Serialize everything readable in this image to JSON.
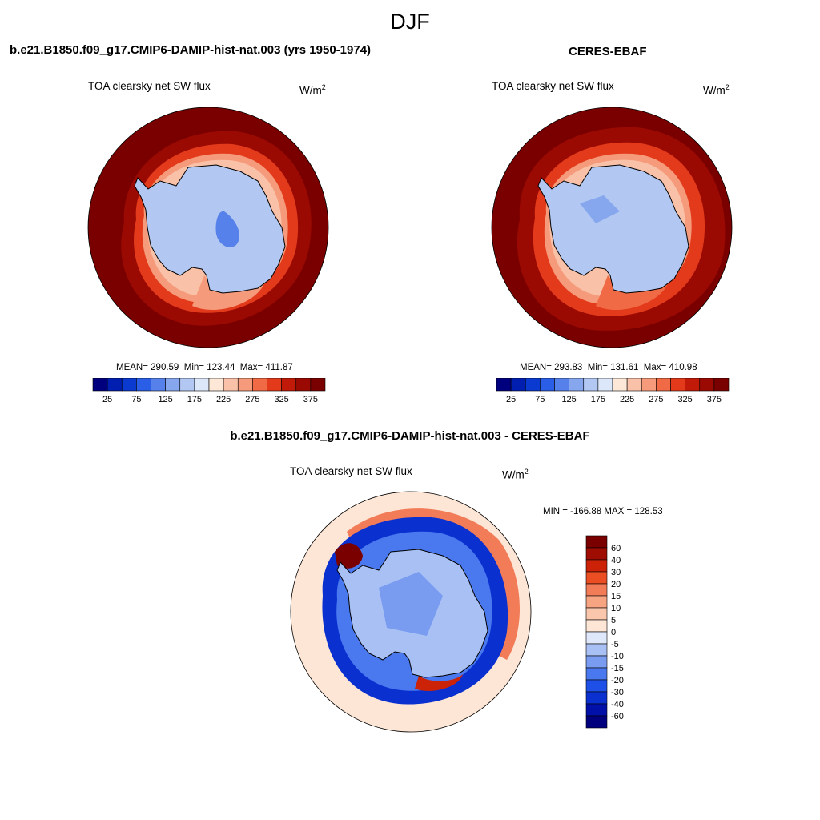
{
  "figure": {
    "title": "DJF"
  },
  "chart_data": [
    {
      "type": "heatmap",
      "projection": "south-polar-stereographic",
      "title": "b.e21.B1850.f09_g17.CMIP6-DAMIP-hist-nat.003 (yrs 1950-1974)",
      "variable": "TOA clearsky net SW flux",
      "units": {
        "base": "W/m",
        "exp": "2"
      },
      "stats": {
        "mean_label": "MEAN=",
        "mean": "290.59",
        "min_label": "Min=",
        "min": "123.44",
        "max_label": "Max=",
        "max": "411.87"
      },
      "colorbar": {
        "orientation": "horizontal",
        "levels": [
          25,
          50,
          75,
          100,
          125,
          150,
          175,
          200,
          225,
          250,
          275,
          300,
          325,
          350,
          375
        ],
        "tick_labels": [
          "25",
          "75",
          "125",
          "175",
          "225",
          "275",
          "325",
          "375"
        ],
        "colors": [
          "#00007f",
          "#001fb0",
          "#0a3ad0",
          "#2a5ee6",
          "#5781ea",
          "#86a7ee",
          "#b2c8f2",
          "#dce7fa",
          "#fde8d8",
          "#f9c1a8",
          "#f59a7a",
          "#f06a45",
          "#e23a1a",
          "#c21a08",
          "#9a0a02",
          "#7a0000"
        ]
      },
      "field": {
        "ocean_outer": 390,
        "ocean_ice_edge": 230,
        "antarctica_plateau": 150,
        "ross_sea": 270
      }
    },
    {
      "type": "heatmap",
      "projection": "south-polar-stereographic",
      "title": "CERES-EBAF",
      "variable": "TOA clearsky net SW flux",
      "units": {
        "base": "W/m",
        "exp": "2"
      },
      "stats": {
        "mean_label": "MEAN=",
        "mean": "293.83",
        "min_label": "Min=",
        "min": "131.61",
        "max_label": "Max=",
        "max": "410.98"
      },
      "colorbar": {
        "orientation": "horizontal",
        "levels": [
          25,
          50,
          75,
          100,
          125,
          150,
          175,
          200,
          225,
          250,
          275,
          300,
          325,
          350,
          375
        ],
        "tick_labels": [
          "25",
          "75",
          "125",
          "175",
          "225",
          "275",
          "325",
          "375"
        ],
        "colors": [
          "#00007f",
          "#001fb0",
          "#0a3ad0",
          "#2a5ee6",
          "#5781ea",
          "#86a7ee",
          "#b2c8f2",
          "#dce7fa",
          "#fde8d8",
          "#f9c1a8",
          "#f59a7a",
          "#f06a45",
          "#e23a1a",
          "#c21a08",
          "#9a0a02",
          "#7a0000"
        ]
      },
      "field": {
        "ocean_outer": 390,
        "ocean_ice_edge": 240,
        "antarctica_plateau": 155,
        "ross_sea": 290
      }
    },
    {
      "type": "heatmap",
      "projection": "south-polar-stereographic",
      "title": "b.e21.B1850.f09_g17.CMIP6-DAMIP-hist-nat.003 - CERES-EBAF",
      "variable": "TOA clearsky net SW flux",
      "units": {
        "base": "W/m",
        "exp": "2"
      },
      "stats": {
        "text": "MIN = -166.88 MAX = 128.53"
      },
      "colorbar": {
        "orientation": "vertical",
        "levels": [
          -60,
          -40,
          -30,
          -20,
          -15,
          -10,
          -5,
          0,
          5,
          10,
          15,
          20,
          30,
          40,
          60
        ],
        "tick_labels": [
          "60",
          "40",
          "30",
          "20",
          "15",
          "10",
          "5",
          "0",
          "-5",
          "-10",
          "-15",
          "-20",
          "-30",
          "-40",
          "-60"
        ],
        "colors": [
          "#00007f",
          "#0010a8",
          "#0a30d0",
          "#1e50e8",
          "#4a78ee",
          "#7a9cf0",
          "#a8c0f4",
          "#dfe8fa",
          "#fde6d6",
          "#fac6ac",
          "#f6a482",
          "#f27c58",
          "#ea4e22",
          "#cc2208",
          "#9e0c02",
          "#7a0000"
        ]
      },
      "field": {
        "ocean_outer": 3,
        "ice_edge_ring": -40,
        "antarctica_interior": -8,
        "weddell_pos": 60
      }
    }
  ]
}
